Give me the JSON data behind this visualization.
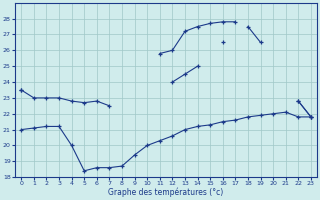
{
  "hours": [
    0,
    1,
    2,
    3,
    4,
    5,
    6,
    7,
    8,
    9,
    10,
    11,
    12,
    13,
    14,
    15,
    16,
    17,
    18,
    19,
    20,
    21,
    22,
    23
  ],
  "series": {
    "line_top": [
      null,
      null,
      null,
      null,
      null,
      null,
      null,
      null,
      null,
      null,
      null,
      25.8,
      26.0,
      27.2,
      27.5,
      27.7,
      27.8,
      27.8,
      null,
      null,
      null,
      null,
      null,
      null
    ],
    "line_high": [
      23.5,
      null,
      null,
      null,
      null,
      null,
      null,
      null,
      null,
      null,
      null,
      null,
      24.0,
      24.5,
      25.0,
      null,
      26.5,
      null,
      27.5,
      26.5,
      null,
      null,
      22.8,
      21.8
    ],
    "line_mid": [
      23.5,
      23.0,
      23.0,
      23.0,
      22.8,
      22.7,
      22.8,
      22.5,
      null,
      null,
      null,
      null,
      null,
      null,
      null,
      null,
      null,
      null,
      null,
      null,
      null,
      null,
      22.8,
      21.8
    ],
    "line_low": [
      21.0,
      21.1,
      21.2,
      21.2,
      20.0,
      18.4,
      18.6,
      18.6,
      18.7,
      19.4,
      20.0,
      20.3,
      20.6,
      21.0,
      21.2,
      21.3,
      21.5,
      21.6,
      21.8,
      21.9,
      22.0,
      22.1,
      21.8,
      21.8
    ]
  },
  "color": "#1c3a8a",
  "bg_color": "#d0ecec",
  "grid_color": "#a0c8c8",
  "xlabel": "Graphe des températures (°c)",
  "ylim": [
    18,
    29
  ],
  "xlim": [
    -0.5,
    23.5
  ],
  "yticks": [
    18,
    19,
    20,
    21,
    22,
    23,
    24,
    25,
    26,
    27,
    28
  ],
  "xticks": [
    0,
    1,
    2,
    3,
    4,
    5,
    6,
    7,
    8,
    9,
    10,
    11,
    12,
    13,
    14,
    15,
    16,
    17,
    18,
    19,
    20,
    21,
    22,
    23
  ]
}
